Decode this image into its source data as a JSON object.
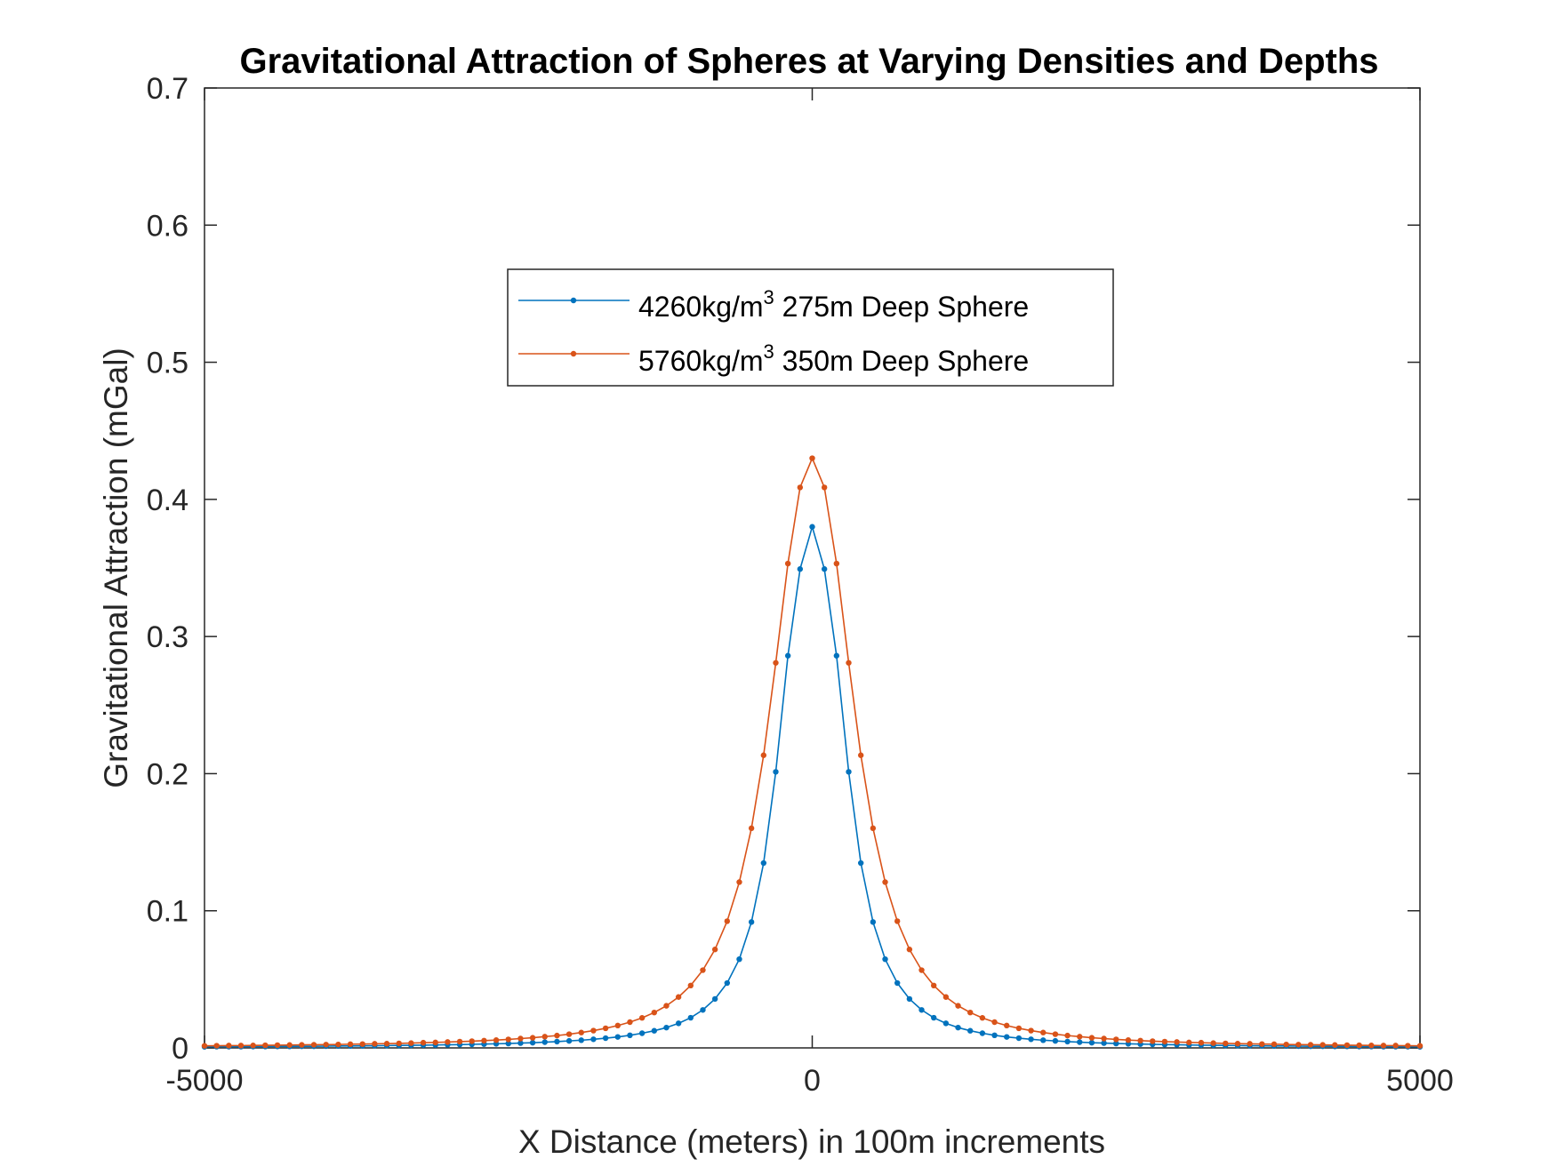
{
  "chart_data": {
    "type": "line",
    "title": "Gravitational Attraction of Spheres at Varying Densities and Depths",
    "xlabel": "X Distance (meters) in 100m increments",
    "ylabel": "Gravitational Attraction (mGal)",
    "xlim": [
      -5000,
      5000
    ],
    "ylim": [
      0,
      0.7
    ],
    "x_ticks": [
      -5000,
      0,
      5000
    ],
    "x_tick_labels": [
      "-5000",
      "0",
      "5000"
    ],
    "y_ticks": [
      0,
      0.1,
      0.2,
      0.3,
      0.4,
      0.5,
      0.6,
      0.7
    ],
    "y_tick_labels": [
      "0",
      "0.1",
      "0.2",
      "0.3",
      "0.4",
      "0.5",
      "0.6",
      "0.7"
    ],
    "grid": false,
    "legend_position": "upper-center",
    "x_step": 100,
    "series": [
      {
        "legend_main": "4260kg/m",
        "legend_sup": "3",
        "legend_rest": " 275m Deep Sphere",
        "color": "#0072BD",
        "marker": "point",
        "x_start": -5000,
        "values": [
          0.0008,
          0.0009,
          0.0009,
          0.0009,
          0.001,
          0.001,
          0.0011,
          0.0011,
          0.0012,
          0.0012,
          0.0013,
          0.0014,
          0.0014,
          0.0015,
          0.0016,
          0.0017,
          0.0018,
          0.0019,
          0.002,
          0.0021,
          0.0023,
          0.0024,
          0.0026,
          0.0028,
          0.003,
          0.0032,
          0.0035,
          0.0038,
          0.0042,
          0.0046,
          0.0051,
          0.0056,
          0.0063,
          0.0071,
          0.008,
          0.0092,
          0.0107,
          0.0125,
          0.0148,
          0.0179,
          0.022,
          0.0277,
          0.0357,
          0.0473,
          0.0647,
          0.0918,
          0.1348,
          0.2013,
          0.286,
          0.3492,
          0.38,
          0.3492,
          0.286,
          0.2013,
          0.1348,
          0.0918,
          0.0647,
          0.0473,
          0.0357,
          0.0277,
          0.022,
          0.0179,
          0.0148,
          0.0125,
          0.0107,
          0.0092,
          0.008,
          0.0071,
          0.0063,
          0.0056,
          0.0051,
          0.0046,
          0.0042,
          0.0038,
          0.0035,
          0.0032,
          0.003,
          0.0028,
          0.0026,
          0.0024,
          0.0023,
          0.0021,
          0.002,
          0.0019,
          0.0018,
          0.0017,
          0.0016,
          0.0015,
          0.0014,
          0.0014,
          0.0013,
          0.0012,
          0.0012,
          0.0011,
          0.0011,
          0.001,
          0.001,
          0.0009,
          0.0009,
          0.0009,
          0.0008
        ]
      },
      {
        "legend_main": "5760kg/m",
        "legend_sup": "3",
        "legend_rest": " 350m Deep Sphere",
        "color": "#D95319",
        "marker": "point",
        "x_start": -5000,
        "values": [
          0.0015,
          0.0016,
          0.0017,
          0.0017,
          0.0018,
          0.0019,
          0.002,
          0.0021,
          0.0022,
          0.0023,
          0.0024,
          0.0025,
          0.0027,
          0.0028,
          0.003,
          0.0031,
          0.0033,
          0.0035,
          0.0038,
          0.004,
          0.0043,
          0.0046,
          0.0049,
          0.0053,
          0.0057,
          0.0062,
          0.0068,
          0.0074,
          0.0082,
          0.009,
          0.01,
          0.0112,
          0.0126,
          0.0143,
          0.0163,
          0.0188,
          0.0219,
          0.0258,
          0.0307,
          0.0371,
          0.0455,
          0.0567,
          0.0718,
          0.0924,
          0.1209,
          0.1602,
          0.2134,
          0.2808,
          0.3532,
          0.4087,
          0.43,
          0.4087,
          0.3532,
          0.2808,
          0.2134,
          0.1602,
          0.1209,
          0.0924,
          0.0718,
          0.0567,
          0.0455,
          0.0371,
          0.0307,
          0.0258,
          0.0219,
          0.0188,
          0.0163,
          0.0143,
          0.0126,
          0.0112,
          0.01,
          0.009,
          0.0082,
          0.0074,
          0.0068,
          0.0062,
          0.0057,
          0.0053,
          0.0049,
          0.0046,
          0.0043,
          0.004,
          0.0038,
          0.0035,
          0.0033,
          0.0031,
          0.003,
          0.0028,
          0.0027,
          0.0025,
          0.0024,
          0.0023,
          0.0022,
          0.0021,
          0.002,
          0.0019,
          0.0018,
          0.0017,
          0.0017,
          0.0016,
          0.0015
        ]
      }
    ]
  }
}
